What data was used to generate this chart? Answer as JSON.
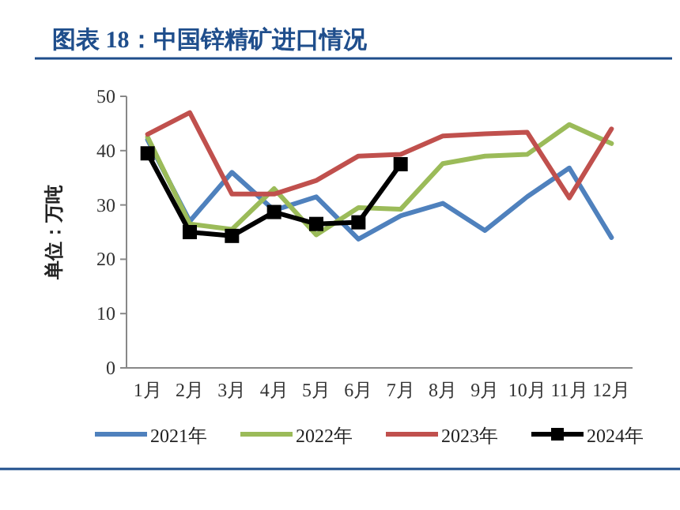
{
  "chart_data": {
    "type": "line",
    "title": "图表 18：中国锌精矿进口情况",
    "ylabel": "单位：万吨",
    "categories": [
      "1月",
      "2月",
      "3月",
      "4月",
      "5月",
      "6月",
      "7月",
      "8月",
      "9月",
      "10月",
      "11月",
      "12月"
    ],
    "series": [
      {
        "name": "2021年",
        "color": "#4f81bd",
        "values": [
          42,
          27,
          36,
          29,
          31.5,
          23.7,
          28,
          30.3,
          25.3,
          31.5,
          36.8,
          24
        ]
      },
      {
        "name": "2022年",
        "color": "#9bbb59",
        "values": [
          42.5,
          26.5,
          25.5,
          33,
          24.5,
          29.5,
          29.2,
          37.6,
          39,
          39.3,
          44.8,
          41.3
        ]
      },
      {
        "name": "2023年",
        "color": "#c0504d",
        "values": [
          43,
          47,
          32,
          32,
          34.5,
          39,
          39.3,
          42.7,
          43.1,
          43.4,
          31.3,
          44
        ]
      },
      {
        "name": "2024年",
        "color": "#000000",
        "marker": "square",
        "values": [
          39.5,
          25,
          24.3,
          28.7,
          26.5,
          26.8,
          37.5,
          null,
          null,
          null,
          null,
          null
        ]
      }
    ],
    "ylim": [
      0,
      50
    ],
    "yticks": [
      0,
      10,
      20,
      30,
      40,
      50
    ],
    "grid": false,
    "legend": "bottom",
    "marker": "none",
    "line_style": "solid"
  }
}
